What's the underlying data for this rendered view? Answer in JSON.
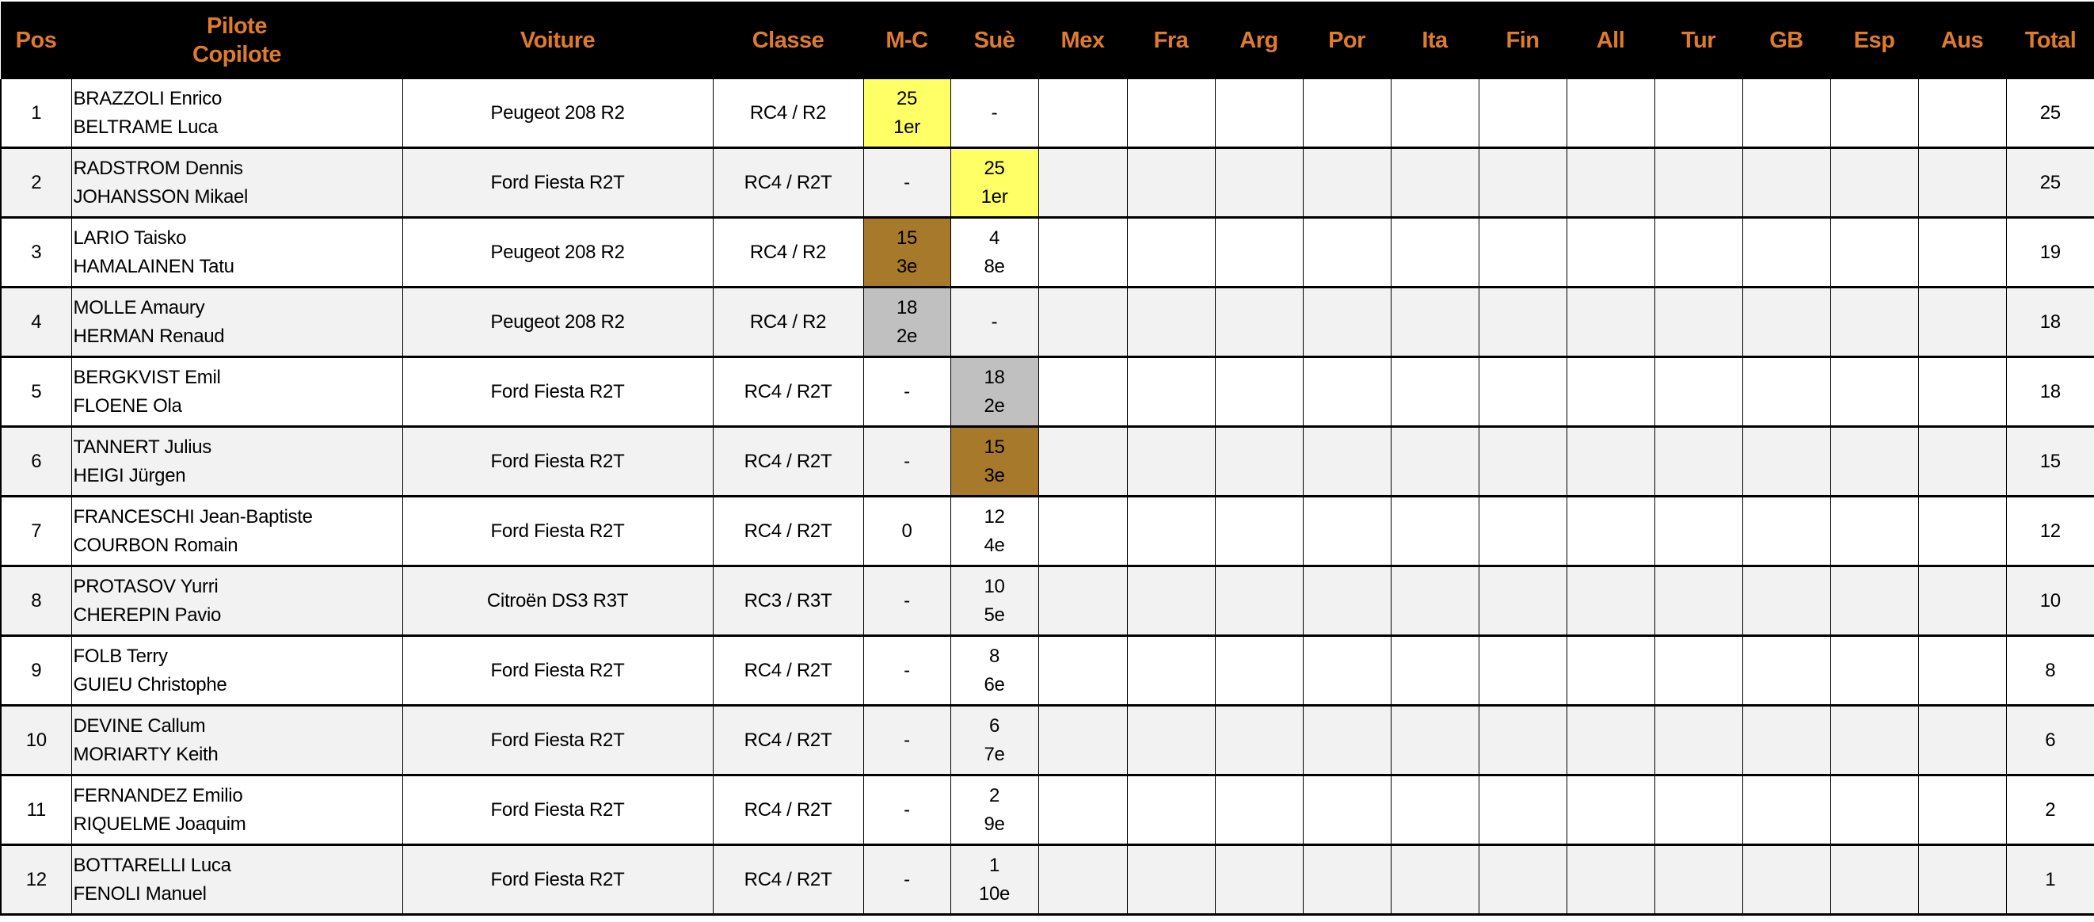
{
  "header": {
    "pos": "Pos",
    "pilote": "Pilote",
    "copilote": "Copilote",
    "voiture": "Voiture",
    "classe": "Classe",
    "rallies": [
      "M-C",
      "Suè",
      "Mex",
      "Fra",
      "Arg",
      "Por",
      "Ita",
      "Fin",
      "All",
      "Tur",
      "GB",
      "Esp",
      "Aus"
    ],
    "total": "Total"
  },
  "colors": {
    "header_bg": "#000000",
    "header_text": "#e07a2c",
    "gold": "#ffff66",
    "silver": "#c0c0c0",
    "bronze": "#a6792b",
    "alt_row": "#f2f2f2"
  },
  "rows": [
    {
      "pos": "1",
      "pilote": "BRAZZOLI Enrico",
      "copilote": "BELTRAME Luca",
      "voiture": "Peugeot 208 R2",
      "classe": "RC4 / R2",
      "results": [
        {
          "points": "25",
          "place": "1er",
          "highlight": "gold"
        },
        {
          "points": "-"
        }
      ],
      "total": "25"
    },
    {
      "pos": "2",
      "pilote": "RADSTROM Dennis",
      "copilote": "JOHANSSON Mikael",
      "voiture": "Ford Fiesta R2T",
      "classe": "RC4 / R2T",
      "results": [
        {
          "points": "-"
        },
        {
          "points": "25",
          "place": "1er",
          "highlight": "gold"
        }
      ],
      "total": "25"
    },
    {
      "pos": "3",
      "pilote": "LARIO Taisko",
      "copilote": "HAMALAINEN Tatu",
      "voiture": "Peugeot 208 R2",
      "classe": "RC4 / R2",
      "results": [
        {
          "points": "15",
          "place": "3e",
          "highlight": "bronze"
        },
        {
          "points": "4",
          "place": "8e"
        }
      ],
      "total": "19"
    },
    {
      "pos": "4",
      "pilote": "MOLLE Amaury",
      "copilote": "HERMAN Renaud",
      "voiture": "Peugeot 208 R2",
      "classe": "RC4 / R2",
      "results": [
        {
          "points": "18",
          "place": "2e",
          "highlight": "silver"
        },
        {
          "points": "-"
        }
      ],
      "total": "18"
    },
    {
      "pos": "5",
      "pilote": "BERGKVIST Emil",
      "copilote": "FLOENE Ola",
      "voiture": "Ford Fiesta R2T",
      "classe": "RC4 / R2T",
      "results": [
        {
          "points": "-"
        },
        {
          "points": "18",
          "place": "2e",
          "highlight": "silver"
        }
      ],
      "total": "18"
    },
    {
      "pos": "6",
      "pilote": "TANNERT Julius",
      "copilote": "HEIGI Jürgen",
      "voiture": "Ford Fiesta R2T",
      "classe": "RC4 / R2T",
      "results": [
        {
          "points": "-"
        },
        {
          "points": "15",
          "place": "3e",
          "highlight": "bronze"
        }
      ],
      "total": "15"
    },
    {
      "pos": "7",
      "pilote": "FRANCESCHI Jean-Baptiste",
      "copilote": "COURBON Romain",
      "voiture": "Ford Fiesta R2T",
      "classe": "RC4 / R2T",
      "results": [
        {
          "points": "0"
        },
        {
          "points": "12",
          "place": "4e"
        }
      ],
      "total": "12"
    },
    {
      "pos": "8",
      "pilote": "PROTASOV Yurri",
      "copilote": "CHEREPIN Pavio",
      "voiture": "Citroën DS3 R3T",
      "classe": "RC3 / R3T",
      "results": [
        {
          "points": "-"
        },
        {
          "points": "10",
          "place": "5e"
        }
      ],
      "total": "10"
    },
    {
      "pos": "9",
      "pilote": "FOLB Terry",
      "copilote": "GUIEU Christophe",
      "voiture": "Ford Fiesta R2T",
      "classe": "RC4 / R2T",
      "results": [
        {
          "points": "-"
        },
        {
          "points": "8",
          "place": "6e"
        }
      ],
      "total": "8"
    },
    {
      "pos": "10",
      "pilote": "DEVINE Callum",
      "copilote": "MORIARTY Keith",
      "voiture": "Ford Fiesta R2T",
      "classe": "RC4 / R2T",
      "results": [
        {
          "points": "-"
        },
        {
          "points": "6",
          "place": "7e"
        }
      ],
      "total": "6"
    },
    {
      "pos": "11",
      "pilote": "FERNANDEZ Emilio",
      "copilote": "RIQUELME Joaquim",
      "voiture": "Ford Fiesta R2T",
      "classe": "RC4 / R2T",
      "results": [
        {
          "points": "-"
        },
        {
          "points": "2",
          "place": "9e"
        }
      ],
      "total": "2"
    },
    {
      "pos": "12",
      "pilote": "BOTTARELLI Luca",
      "copilote": "FENOLI Manuel",
      "voiture": "Ford Fiesta R2T",
      "classe": "RC4 / R2T",
      "results": [
        {
          "points": "-"
        },
        {
          "points": "1",
          "place": "10e"
        }
      ],
      "total": "1"
    }
  ]
}
